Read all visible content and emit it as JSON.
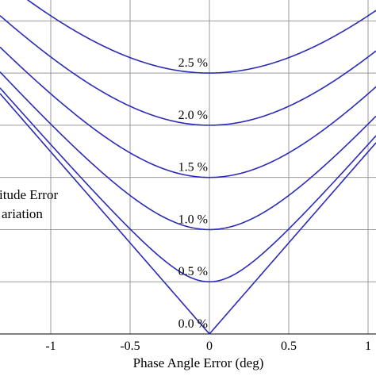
{
  "chart_data": {
    "type": "line",
    "xlabel": "Phase Angle Error (deg)",
    "side_text": [
      "itude Error",
      "ariation"
    ],
    "xlim": [
      -1.32,
      1.05
    ],
    "ylim": [
      0,
      3.2
    ],
    "grid": true,
    "x_ticks": [
      {
        "value": -1,
        "label": "-1"
      },
      {
        "value": -0.5,
        "label": "-0.5"
      },
      {
        "value": 0,
        "label": "0"
      },
      {
        "value": 0.5,
        "label": "0.5"
      },
      {
        "value": 1,
        "label": "1"
      }
    ],
    "y_gridlines": [
      0,
      0.5,
      1.0,
      1.5,
      2.0,
      2.5,
      3.0
    ],
    "line_color": "#2b2bb8",
    "slope_per_deg": 1.745,
    "series": [
      {
        "label": "0.0 %",
        "min_value": 0.0
      },
      {
        "label": "0.5 %",
        "min_value": 0.5
      },
      {
        "label": "1.0 %",
        "min_value": 1.0
      },
      {
        "label": "1.5 %",
        "min_value": 1.5
      },
      {
        "label": "2.0 %",
        "min_value": 2.0
      },
      {
        "label": "2.5 %",
        "min_value": 2.5
      }
    ]
  }
}
